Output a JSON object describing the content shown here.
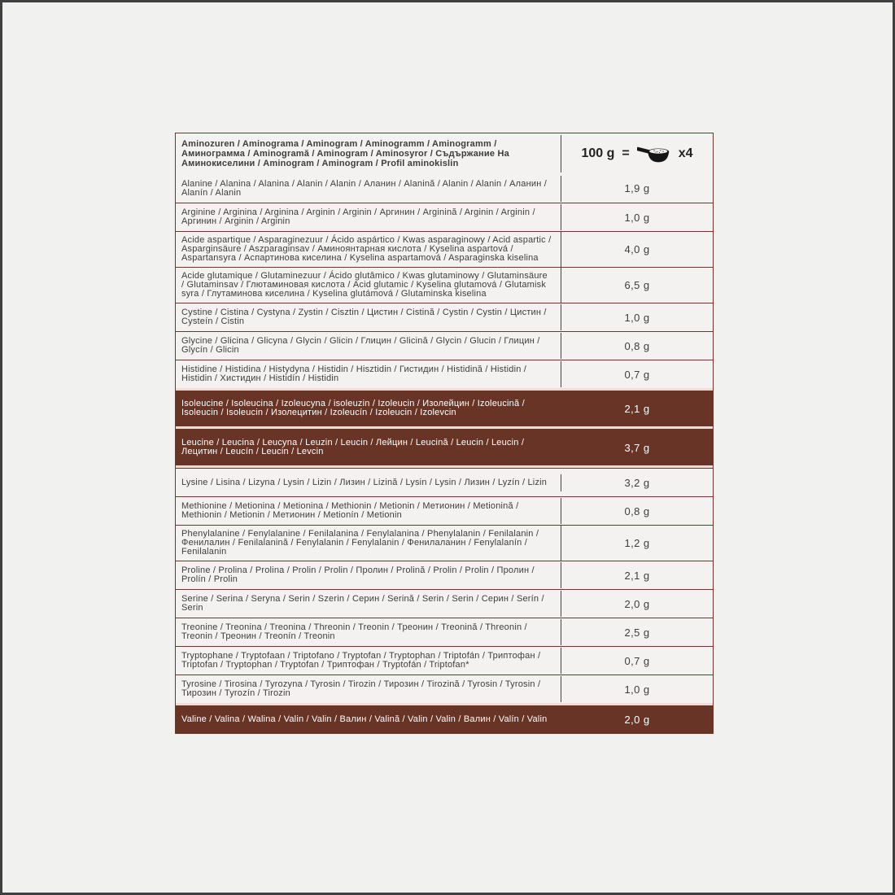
{
  "page": {
    "background": "#f1f1ef",
    "frame_color": "#404040"
  },
  "table": {
    "colors": {
      "border": "#6e352a",
      "highlight": "#683426",
      "row_bg": "#f3f2f0",
      "text": "#3d3d3d",
      "highlight_text": "#ffffff",
      "highlight_gap": "#eedcd5"
    },
    "header": {
      "names_label": "Aminozuren / Aminograma / Aminogram / Aminogramm / Aminogramm / Аминограмма / Aminogramă / Aminogram / Aminosyror / Съдържание На Аминокиселини / Aminogram / Aminogram / Profil aminokislin",
      "serving_amount": "100 g",
      "equals": "=",
      "scoop_icon": "measuring-scoop-icon",
      "multiplier": "x4"
    },
    "rows": [
      {
        "names": "Alanine / Alanina / Alanina / Alanin / Alanin / Аланин / Alanină / Alanin / Alanin / Аланин / Alanín / Alanin",
        "value": "1,9 g",
        "highlighted": false
      },
      {
        "names": "Arginine / Arginina / Arginina / Arginin / Arginin / Аргинин / Arginină / Arginin / Arginin / Аргинин / Arginin / Arginin",
        "value": "1,0 g",
        "highlighted": false
      },
      {
        "names": "Acide aspartique / Asparaginezuur / Ácido aspártico / Kwas asparaginowy / Acid aspartic / Asparginsäure / Aszparaginsav / Аминоянтарная кислота / Kyselina aspartová / Aspartansyra / Аспартинова киселина / Kyselina aspartamová / Asparaginska kiselina",
        "value": "4,0 g",
        "highlighted": false
      },
      {
        "names": "Acide glutamique / Glutaminezuur / Ácido glutâmico / Kwas glutaminowy / Glutaminsäure / Glutaminsav / Глютаминовая кислота / Acid glutamic / Kyselina glutamová / Glutamisk syra / Глутаминова киселина / Kyselina glutámová / Glutaminska kiselina",
        "value": "6,5 g",
        "highlighted": false
      },
      {
        "names": "Cystine / Cistina / Cystyna / Zystin / Cisztin / Цистин / Cistină / Cystin / Cystin / Цистин / Cysteín / Cistin",
        "value": "1,0 g",
        "highlighted": false
      },
      {
        "names": "Glycine / Glicina / Glicyna / Glycin / Glicin / Глицин / Glicină / Glycin / Glucin / Глицин / Glycín / Glicin",
        "value": "0,8 g",
        "highlighted": false
      },
      {
        "names": "Histidine / Histidina / Histydyna / Histidin / Hisztidin / Гистидин / Histidină / Histidin / Histidin / Хистидин / Histidín / Histidin",
        "value": "0,7 g",
        "highlighted": false
      },
      {
        "names": "Isoleucine / Isoleucina / Izoleucyna / isoleuzin / Izoleucin / Изолейцин / Izoleucină / Isoleucin / Isoleucin / Изолецитин / Izoleucín / Izoleucin / Izolevcin",
        "value": "2,1 g",
        "highlighted": true
      },
      {
        "names": "Leucine / Leucina / Leucyna / Leuzin / Leucin / Лейцин / Leucină / Leucin / Leucin / Лецитин / Leucín / Leucin / Levcin",
        "value": "3,7 g",
        "highlighted": true
      },
      {
        "names": "Lysine / Lisina / Lizyna / Lysin / Lizin / Лизин / Lizină / Lysin / Lysin / Лизин / Lyzín / Lizin",
        "value": "3,2 g",
        "highlighted": false
      },
      {
        "names": "Methionine / Metionina / Metionina / Methionin / Metionin / Метионин / Metionină / Methionin / Metionin / Метионин / Metionín / Metionin",
        "value": "0,8 g",
        "highlighted": false
      },
      {
        "names": "Phenylalanine / Fenylalanine / Fenilalanina / Fenylalanina / Phenylalanin / Fenilalanin / Фенилалин / Fenilalanină / Fenylalanin / Fenylalanin / Фенилаланин / Fenylalanín / Fenilalanin",
        "value": "1,2 g",
        "highlighted": false
      },
      {
        "names": "Proline / Prolina / Prolina / Prolin / Prolin / Пролин / Prolină / Prolin / Prolin / Пролин / Prolín / Prolin",
        "value": "2,1 g",
        "highlighted": false
      },
      {
        "names": "Serine / Serina / Seryna / Serin / Szerin / Серин / Serină / Serin / Serin / Серин / Serín / Serin",
        "value": "2,0 g",
        "highlighted": false
      },
      {
        "names": "Treonine / Treonina / Treonina / Threonin / Treonin / Треонин / Treonină / Threonin / Treonin / Треонин / Treonín / Treonin",
        "value": "2,5 g",
        "highlighted": false
      },
      {
        "names": "Tryptophane / Tryptofaan / Triptofano / Tryptofan / Tryptophan / Triptofán / Триптофан / Triptofan / Tryptophan / Tryptofan / Триптофан / Tryptofán / Triptofan*",
        "value": "0,7 g",
        "highlighted": false
      },
      {
        "names": "Tyrosine / Tirosina / Tyrozyna / Tyrosin / Tirozin / Тирозин / Tirozină / Tyrosin / Tyrosin / Тирозин / Tyrozín / Tirozin",
        "value": "1,0 g",
        "highlighted": false
      },
      {
        "names": "Valine / Valina / Walina / Valin / Valin / Валин / Valină / Valin / Valin / Валин / Valín / Valin",
        "value": "2,0 g",
        "highlighted": true
      }
    ]
  }
}
